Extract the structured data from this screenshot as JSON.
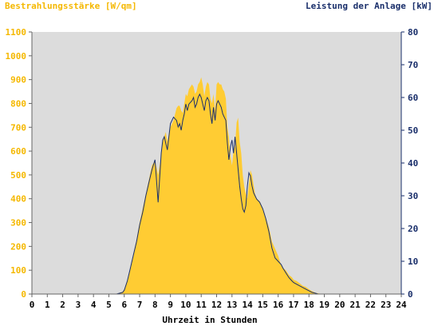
{
  "chart_data": {
    "type": "area",
    "left_axis_title": "Bestrahlungsstärke [W/qm]",
    "right_axis_title": "Leistung der Anlage [kW]",
    "xlabel": "Uhrzeit in Stunden",
    "xlim": [
      0,
      24
    ],
    "ylim_left": [
      0,
      1100
    ],
    "ylim_right": [
      0,
      80
    ],
    "x_ticks": [
      "0",
      "1",
      "2",
      "3",
      "4",
      "5",
      "6",
      "7",
      "8",
      "9",
      "10",
      "11",
      "12",
      "13",
      "14",
      "15",
      "16",
      "17",
      "18",
      "19",
      "20",
      "21",
      "22",
      "23",
      "24"
    ],
    "y_ticks_left": [
      "0",
      "100",
      "200",
      "300",
      "400",
      "500",
      "600",
      "700",
      "800",
      "900",
      "1000",
      "1100"
    ],
    "y_ticks_right": [
      "0",
      "10",
      "20",
      "30",
      "40",
      "50",
      "60",
      "70",
      "80"
    ],
    "colors": {
      "irradiance": "#ffcc33",
      "power": "#1a2f6b",
      "plot_background": "#dcdcdc",
      "left_axis_text": "#f5b800",
      "right_axis_text": "#1a2f6b"
    },
    "series": [
      {
        "axis": "left",
        "type": "area",
        "x": [
          0,
          5.5,
          5.9,
          6.0,
          6.2,
          6.4,
          6.6,
          6.8,
          7.0,
          7.2,
          7.4,
          7.6,
          7.8,
          8.0,
          8.2,
          8.4,
          8.5,
          8.6,
          8.7,
          8.8,
          9.0,
          9.2,
          9.4,
          9.5,
          9.6,
          9.7,
          9.8,
          9.9,
          10.0,
          10.1,
          10.2,
          10.4,
          10.5,
          10.6,
          10.7,
          10.8,
          10.9,
          11.0,
          11.1,
          11.2,
          11.3,
          11.4,
          11.5,
          11.6,
          11.7,
          11.8,
          11.9,
          12.0,
          12.1,
          12.2,
          12.3,
          12.4,
          12.5,
          12.6,
          12.7,
          12.8,
          12.9,
          13.0,
          13.1,
          13.2,
          13.3,
          13.4,
          13.5,
          13.6,
          13.7,
          13.8,
          13.9,
          14.0,
          14.1,
          14.2,
          14.3,
          14.4,
          14.5,
          14.6,
          14.8,
          15.0,
          15.2,
          15.4,
          15.6,
          15.8,
          16.0,
          16.2,
          16.3,
          16.5,
          16.7,
          16.9,
          17.0,
          17.2,
          17.4,
          17.6,
          17.8,
          18.0,
          18.2,
          18.4,
          18.6,
          18.8,
          19.0,
          24
        ],
        "y": [
          0,
          0,
          10,
          20,
          60,
          110,
          170,
          230,
          300,
          360,
          420,
          480,
          540,
          560,
          500,
          580,
          640,
          660,
          680,
          640,
          700,
          730,
          780,
          790,
          790,
          770,
          760,
          800,
          840,
          830,
          860,
          880,
          870,
          840,
          850,
          880,
          890,
          910,
          880,
          830,
          870,
          890,
          880,
          820,
          800,
          840,
          770,
          880,
          890,
          880,
          880,
          860,
          850,
          820,
          700,
          660,
          580,
          540,
          600,
          620,
          720,
          740,
          640,
          590,
          500,
          450,
          420,
          400,
          460,
          520,
          500,
          460,
          420,
          400,
          390,
          360,
          320,
          280,
          220,
          190,
          160,
          120,
          110,
          100,
          80,
          70,
          60,
          55,
          45,
          35,
          30,
          20,
          12,
          6,
          3,
          1,
          0,
          0
        ]
      },
      {
        "axis": "right",
        "type": "line",
        "x": [
          0,
          5.5,
          5.9,
          6.0,
          6.2,
          6.4,
          6.6,
          6.8,
          7.0,
          7.2,
          7.4,
          7.6,
          7.8,
          8.0,
          8.2,
          8.4,
          8.5,
          8.6,
          8.7,
          8.8,
          9.0,
          9.2,
          9.4,
          9.5,
          9.6,
          9.7,
          9.8,
          9.9,
          10.0,
          10.1,
          10.2,
          10.4,
          10.5,
          10.6,
          10.7,
          10.8,
          10.9,
          11.0,
          11.1,
          11.2,
          11.3,
          11.4,
          11.5,
          11.6,
          11.7,
          11.8,
          11.9,
          12.0,
          12.1,
          12.2,
          12.3,
          12.4,
          12.5,
          12.6,
          12.7,
          12.8,
          12.9,
          13.0,
          13.1,
          13.2,
          13.3,
          13.4,
          13.5,
          13.6,
          13.7,
          13.8,
          13.9,
          14.0,
          14.1,
          14.2,
          14.3,
          14.4,
          14.5,
          14.6,
          14.8,
          15.0,
          15.2,
          15.4,
          15.6,
          15.8,
          16.0,
          16.2,
          16.3,
          16.5,
          16.7,
          16.9,
          17.0,
          17.2,
          17.4,
          17.6,
          17.8,
          18.0,
          18.2,
          18.4,
          18.6,
          18.8,
          19.0,
          24
        ],
        "y": [
          0,
          0,
          0.5,
          1.2,
          4,
          8,
          12,
          16,
          21,
          25,
          30,
          34,
          38,
          41,
          28,
          43,
          47,
          48,
          46,
          44,
          52,
          54,
          53,
          51,
          52,
          50,
          53,
          55,
          58,
          56,
          58,
          59,
          60,
          57,
          58,
          60,
          61,
          60,
          58,
          56,
          59,
          60,
          59,
          55,
          52,
          57,
          53,
          58,
          59,
          58,
          57,
          55,
          54,
          53,
          46,
          41,
          45,
          47,
          43,
          48,
          43,
          38,
          33,
          29,
          26,
          25,
          27,
          33,
          37,
          36,
          33,
          31,
          30,
          29,
          28,
          26,
          23,
          19,
          14,
          11,
          10,
          9,
          8,
          6.5,
          5,
          4,
          3.5,
          3,
          2.5,
          2,
          1.5,
          1,
          0.5,
          0.3,
          0,
          0,
          0,
          0
        ]
      }
    ]
  }
}
